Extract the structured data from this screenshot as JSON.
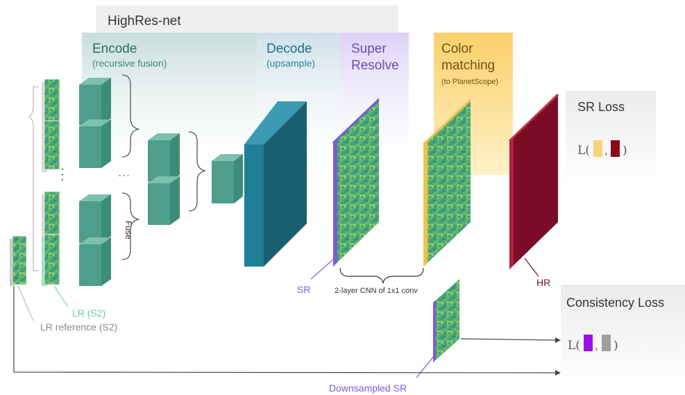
{
  "title": "HighRes-net",
  "stages": {
    "encode": {
      "title": "Encode",
      "subtitle": "(recursive fusion)"
    },
    "decode": {
      "title": "Decode",
      "subtitle": "(upsample)"
    },
    "super_resolve": {
      "line1": "Super",
      "line2": "Resolve"
    },
    "color_matching": {
      "line1": "Color",
      "line2": "matching",
      "subtitle": "(to PlanetScope)"
    }
  },
  "labels": {
    "ellipsis": "...",
    "fuse": "Fuse",
    "lr_s2": "LR (S2)",
    "lr_reference": "LR reference (S2)",
    "sr": "SR",
    "cnn": "2-layer CNN of 1x1 conv",
    "hr": "HR",
    "downsampled_sr": "Downsampled SR",
    "vdots": "⋮"
  },
  "losses": {
    "sr_loss": {
      "title": "SR Loss",
      "fn": "L(",
      "sep": ",",
      "close": ")"
    },
    "consistency_loss": {
      "title": "Consistency Loss",
      "fn": "L(",
      "sep": ",",
      "close": ")"
    }
  },
  "colors": {
    "encode_block": "#4e9e8c",
    "decode_block": "#1f6f86",
    "sr_edge": "#7d5bd6",
    "color_edge": "#f2c14a",
    "hr_block": "#7b0c25",
    "sr_swatch_yellow": "#f8d37a",
    "hr_swatch": "#8b0a1a",
    "purple_swatch": "#9b10e8",
    "gray_swatch": "#a0a0a0"
  }
}
